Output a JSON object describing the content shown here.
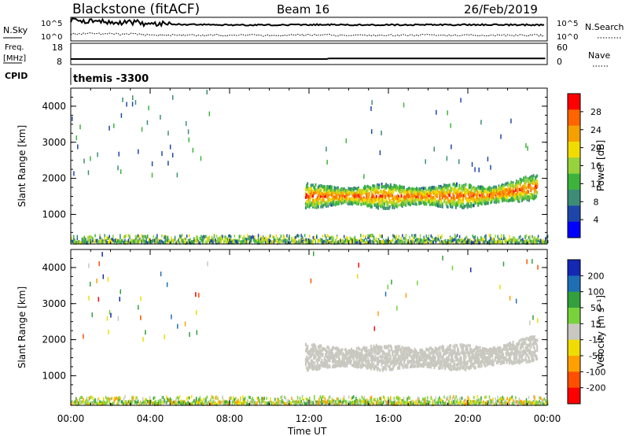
{
  "header": {
    "station": "Blackstone (fitACF)",
    "beam": "Beam 16",
    "date": "26/Feb/2019"
  },
  "status_panels": {
    "nsky_label": "N.Sky",
    "nsearch_label": "N.Search",
    "noise_ticks": [
      "10^5",
      "10^0"
    ],
    "freq_label": "Freq.",
    "freq_unit": "[MHz]",
    "freq_ticks": [
      "18",
      "8"
    ],
    "nave_label": "Nave",
    "nave_ticks": [
      "60",
      "0"
    ],
    "cpid_label": "CPID",
    "cpid_value": "themis -3300"
  },
  "axes": {
    "xlabel": "Time UT",
    "x_ticks": [
      "00:00",
      "04:00",
      "08:00",
      "12:00",
      "16:00",
      "20:00",
      "00:00"
    ],
    "ylabel": "Slant Range [km]",
    "y_ticks": [
      "1000",
      "2000",
      "3000",
      "4000"
    ]
  },
  "colors": {
    "power_scale": [
      "#0000ff",
      "#1e46aa",
      "#3c8c78",
      "#3cb43c",
      "#96d23c",
      "#f0dc00",
      "#f5a000",
      "#ff6400",
      "#ff0000"
    ],
    "velocity_scale": [
      "#1428b4",
      "#1e6eb4",
      "#32a03c",
      "#78d23c",
      "#c8c8c0",
      "#f0dc00",
      "#ffa000",
      "#ff5000",
      "#ff0000"
    ]
  },
  "chart_data": [
    {
      "type": "heatmap",
      "title": "Power",
      "xlabel": "Time UT",
      "ylabel": "Slant Range [km]",
      "xlim": [
        0,
        24
      ],
      "ylim": [
        180,
        4500
      ],
      "colorbar": {
        "label": "Power [dB]",
        "ticks": [
          "4",
          "8",
          "12",
          "16",
          "20",
          "24",
          "28"
        ],
        "range": [
          0,
          30
        ]
      },
      "features": [
        {
          "name": "main_echo_band",
          "x_range": [
            11.8,
            23.5
          ],
          "y_range": [
            1300,
            2200
          ],
          "value_range": [
            8,
            26
          ]
        },
        {
          "name": "ground_scatter_strip",
          "x_range": [
            0,
            24
          ],
          "y_range": [
            200,
            420
          ],
          "value_range": [
            4,
            20
          ]
        },
        {
          "name": "early_sparse_scatter",
          "x_range": [
            0,
            7
          ],
          "y_range": [
            2000,
            4400
          ],
          "value_range": [
            4,
            12
          ]
        }
      ]
    },
    {
      "type": "heatmap",
      "title": "Velocity",
      "xlabel": "Time UT",
      "ylabel": "Slant Range [km]",
      "xlim": [
        0,
        24
      ],
      "ylim": [
        180,
        4500
      ],
      "colorbar": {
        "label": "Velocity [m s⁻¹]",
        "ticks": [
          "200",
          "100",
          "50",
          "15",
          "-15",
          "-50",
          "-100",
          "-200"
        ],
        "range": [
          -250,
          250
        ]
      },
      "features": [
        {
          "name": "ground_scatter_band",
          "x_range": [
            11.8,
            23.5
          ],
          "y_range": [
            1300,
            2200
          ],
          "value_range": [
            -15,
            15
          ]
        },
        {
          "name": "near_range_strip",
          "x_range": [
            0,
            24
          ],
          "y_range": [
            200,
            420
          ],
          "value_range": [
            -100,
            100
          ]
        }
      ]
    },
    {
      "type": "line",
      "title": "N.Sky / N.Search noise",
      "x": [
        0,
        0.5,
        1,
        1.5,
        2,
        2.5,
        3,
        3.5,
        4,
        5,
        6,
        8,
        10,
        12,
        14,
        16,
        18,
        20,
        22,
        23.9
      ],
      "series": [
        {
          "name": "N.Sky",
          "values": [
            0.85,
            0.8,
            0.85,
            0.8,
            0.78,
            0.8,
            0.78,
            0.76,
            0.72,
            0.7,
            0.7,
            0.68,
            0.68,
            0.69,
            0.68,
            0.68,
            0.68,
            0.69,
            0.68,
            0.68
          ]
        },
        {
          "name": "N.Search",
          "values": [
            0.3,
            0.3,
            0.32,
            0.3,
            0.3,
            0.28,
            0.3,
            0.28,
            0.25,
            0.25,
            0.25,
            0.24,
            0.24,
            0.25,
            0.24,
            0.24,
            0.25,
            0.24,
            0.24,
            0.24
          ]
        }
      ]
    },
    {
      "type": "line",
      "title": "Freq. / Nave",
      "x": [
        0,
        1,
        4,
        8,
        12,
        12.9,
        13,
        16,
        20,
        23.9
      ],
      "series": [
        {
          "name": "Freq.",
          "values": [
            10.6,
            10.6,
            10.6,
            10.6,
            10.6,
            10.6,
            10.9,
            10.9,
            10.9,
            10.9
          ]
        }
      ]
    }
  ]
}
